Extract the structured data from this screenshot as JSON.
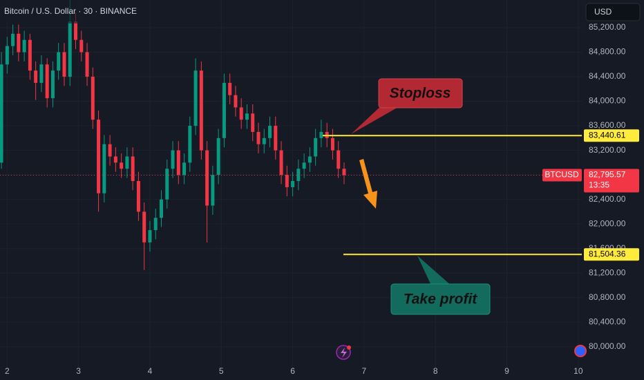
{
  "chart_data": {
    "type": "candlestick",
    "title": "Bitcoin / U.S. Dollar · 30 · BINANCE",
    "currency": "USD",
    "x": [
      1.92,
      2,
      2.08,
      2.16,
      2.24,
      2.32,
      2.4,
      2.48,
      2.56,
      2.64,
      2.72,
      2.8,
      2.88,
      2.96,
      3.04,
      3.12,
      3.2,
      3.28,
      3.36,
      3.44,
      3.52,
      3.6,
      3.68,
      3.76,
      3.84,
      3.92,
      4,
      4.08,
      4.16,
      4.24,
      4.32,
      4.4,
      4.48,
      4.56,
      4.64,
      4.72,
      4.8,
      4.88,
      4.96,
      5.04,
      5.12,
      5.2,
      5.28,
      5.36,
      5.44,
      5.52,
      5.6,
      5.68,
      5.76,
      5.84,
      5.92,
      6,
      6.08,
      6.16,
      6.24,
      6.32,
      6.4,
      6.48,
      6.56,
      6.64,
      6.72
    ],
    "open": [
      83000,
      84600,
      84900,
      85100,
      84800,
      85000,
      84500,
      84300,
      84600,
      84050,
      84500,
      84800,
      84400,
      85300,
      85000,
      84800,
      84400,
      83700,
      82500,
      83300,
      83100,
      83000,
      82900,
      83100,
      82700,
      82200,
      81700,
      81900,
      82100,
      82400,
      82900,
      83200,
      82800,
      83000,
      83600,
      84500,
      83200,
      82300,
      82800,
      83400,
      84300,
      84100,
      83900,
      83700,
      83800,
      83500,
      83300,
      83400,
      83600,
      83200,
      82800,
      82600,
      82700,
      82900,
      83000,
      83100,
      83400,
      83500,
      83400,
      83200,
      82900
    ],
    "high": [
      84800,
      85050,
      85250,
      85250,
      85150,
      85100,
      84650,
      84750,
      84700,
      84650,
      84950,
      84950,
      85650,
      85450,
      85150,
      84950,
      84550,
      83850,
      83450,
      83450,
      83250,
      83150,
      83250,
      83250,
      82850,
      82350,
      82050,
      82250,
      82550,
      83050,
      83350,
      83350,
      83150,
      83750,
      84700,
      84650,
      83350,
      82950,
      83550,
      84450,
      84450,
      84250,
      84050,
      83950,
      83950,
      83650,
      83550,
      83750,
      83750,
      83350,
      82950,
      82850,
      83050,
      83150,
      83250,
      83550,
      83700,
      83650,
      83550,
      83350,
      83000
    ],
    "low": [
      82900,
      84450,
      84750,
      84650,
      84650,
      84350,
      84020,
      84150,
      83900,
      83900,
      84350,
      84250,
      84250,
      84850,
      84650,
      84250,
      83550,
      82200,
      82350,
      82950,
      82850,
      82750,
      82750,
      82550,
      82050,
      81250,
      81550,
      81750,
      81950,
      82250,
      82750,
      82650,
      82650,
      82850,
      83450,
      83050,
      81700,
      82150,
      82650,
      83250,
      83950,
      83750,
      83550,
      83550,
      83350,
      83150,
      83150,
      83250,
      83050,
      82650,
      82450,
      82450,
      82550,
      82750,
      82850,
      82950,
      83250,
      83250,
      83050,
      82750,
      82650
    ],
    "close": [
      84600,
      84900,
      85100,
      84800,
      85000,
      84500,
      84300,
      84600,
      84050,
      84500,
      84800,
      84400,
      85300,
      85000,
      84800,
      84400,
      83700,
      82500,
      83300,
      83100,
      83000,
      82900,
      83100,
      82700,
      82200,
      81700,
      81900,
      82100,
      82400,
      82900,
      83200,
      82800,
      83000,
      83600,
      84500,
      83200,
      82300,
      82800,
      83400,
      84300,
      84100,
      83900,
      83700,
      83800,
      83500,
      83300,
      83400,
      83600,
      83200,
      82800,
      82600,
      82700,
      82900,
      83000,
      83100,
      83400,
      83500,
      83400,
      83200,
      82900,
      82795.57
    ],
    "up_color": "#089981",
    "down_color": "#f23645",
    "xlim": [
      1.9,
      10.05
    ],
    "ylim": [
      79660,
      85650
    ],
    "xticks": [
      2,
      3,
      4,
      5,
      6,
      7,
      8,
      9,
      10
    ],
    "yticks": [
      {
        "value": 80000,
        "label": "80,000.00"
      },
      {
        "value": 80400,
        "label": "80,400.00"
      },
      {
        "value": 80800,
        "label": "80,800.00"
      },
      {
        "value": 81200,
        "label": "81,200.00"
      },
      {
        "value": 81600,
        "label": "81,600.00"
      },
      {
        "value": 82000,
        "label": "82,000.00"
      },
      {
        "value": 82400,
        "label": "82,400.00"
      },
      {
        "value": 82800,
        "label": "82,800.00"
      },
      {
        "value": 83200,
        "label": "83,200.00"
      },
      {
        "value": 83600,
        "label": "83,600.00"
      },
      {
        "value": 84000,
        "label": "84,000.00"
      },
      {
        "value": 84400,
        "label": "84,400.00"
      },
      {
        "value": 84800,
        "label": "84,800.00"
      },
      {
        "value": 85200,
        "label": "85,200.00"
      }
    ],
    "grid": true,
    "levels": [
      {
        "name": "Stoploss",
        "value": 83440.61,
        "label": "83,440.61",
        "color": "#ffeb3b",
        "start": 6.42
      },
      {
        "name": "Take profit",
        "value": 81504.36,
        "label": "81,504.36",
        "color": "#ffeb3b",
        "start": 6.71
      }
    ],
    "last_price": {
      "symbol": "BTCUSD",
      "value": 82795.57,
      "label": "82,795.57",
      "countdown": "13:35",
      "color": "#f23645"
    }
  }
}
